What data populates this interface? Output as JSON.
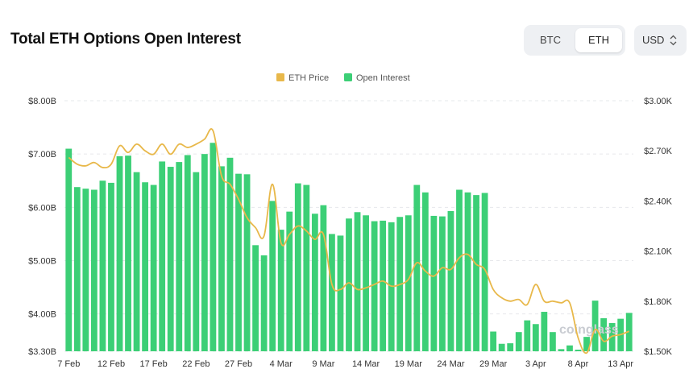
{
  "header": {
    "title": "Total ETH Options Open Interest",
    "asset_tabs": [
      {
        "label": "BTC",
        "selected": false
      },
      {
        "label": "ETH",
        "selected": true
      }
    ],
    "currency": {
      "label": "USD",
      "chevron": "⌃⌄"
    }
  },
  "watermark": "coinglass",
  "chart_data": {
    "type": "bar+line",
    "legend": [
      {
        "name": "ETH Price",
        "color": "#e8b84a"
      },
      {
        "name": "Open Interest",
        "color": "#3ccf76"
      }
    ],
    "x_tick_labels": [
      "7 Feb",
      "12 Feb",
      "17 Feb",
      "22 Feb",
      "27 Feb",
      "4 Mar",
      "9 Mar",
      "14 Mar",
      "19 Mar",
      "24 Mar",
      "29 Mar",
      "3 Apr",
      "8 Apr",
      "13 Apr"
    ],
    "x_tick_index": [
      0,
      5,
      10,
      15,
      20,
      25,
      30,
      35,
      40,
      45,
      50,
      55,
      60,
      65
    ],
    "left_axis": {
      "ticks": [
        "$8.00B",
        "$7.00B",
        "$6.00B",
        "$5.00B",
        "$4.00B",
        "$3.30B"
      ],
      "values": [
        8.0,
        7.0,
        6.0,
        5.0,
        4.0,
        3.3
      ],
      "ylim": [
        3.3,
        8.0
      ]
    },
    "right_axis": {
      "ticks": [
        "$3.00K",
        "$2.70K",
        "$2.40K",
        "$2.10K",
        "$1.80K",
        "$1.50K"
      ],
      "values": [
        3.0,
        2.7,
        2.4,
        2.1,
        1.8,
        1.5
      ],
      "ylim": [
        1.5,
        3.0
      ]
    },
    "dates": [
      "7 Feb",
      "8 Feb",
      "9 Feb",
      "10 Feb",
      "11 Feb",
      "12 Feb",
      "13 Feb",
      "14 Feb",
      "15 Feb",
      "16 Feb",
      "17 Feb",
      "18 Feb",
      "19 Feb",
      "20 Feb",
      "21 Feb",
      "22 Feb",
      "23 Feb",
      "24 Feb",
      "25 Feb",
      "26 Feb",
      "27 Feb",
      "28 Feb",
      "1 Mar",
      "2 Mar",
      "3 Mar",
      "4 Mar",
      "5 Mar",
      "6 Mar",
      "7 Mar",
      "8 Mar",
      "9 Mar",
      "10 Mar",
      "11 Mar",
      "12 Mar",
      "13 Mar",
      "14 Mar",
      "15 Mar",
      "16 Mar",
      "17 Mar",
      "18 Mar",
      "19 Mar",
      "20 Mar",
      "21 Mar",
      "22 Mar",
      "23 Mar",
      "24 Mar",
      "25 Mar",
      "26 Mar",
      "27 Mar",
      "28 Mar",
      "29 Mar",
      "30 Mar",
      "31 Mar",
      "1 Apr",
      "2 Apr",
      "3 Apr",
      "4 Apr",
      "5 Apr",
      "6 Apr",
      "7 Apr",
      "8 Apr",
      "9 Apr",
      "10 Apr",
      "11 Apr",
      "12 Apr",
      "13 Apr",
      "14 Apr"
    ],
    "series": [
      {
        "name": "Open Interest",
        "axis": "left",
        "type": "bar",
        "unit": "USD billions",
        "values": [
          7.1,
          6.38,
          6.35,
          6.33,
          6.5,
          6.46,
          6.96,
          6.97,
          6.66,
          6.47,
          6.42,
          6.86,
          6.76,
          6.85,
          6.98,
          6.66,
          7.0,
          7.21,
          6.77,
          6.93,
          6.63,
          6.62,
          5.29,
          5.1,
          6.12,
          5.58,
          5.92,
          6.45,
          6.42,
          5.88,
          6.04,
          5.5,
          5.47,
          5.79,
          5.91,
          5.85,
          5.74,
          5.75,
          5.72,
          5.82,
          5.85,
          6.42,
          6.28,
          5.84,
          5.83,
          5.93,
          6.33,
          6.28,
          6.23,
          6.27,
          3.67,
          3.44,
          3.45,
          3.66,
          3.88,
          3.81,
          4.04,
          3.66,
          3.34,
          3.41,
          3.33,
          3.57,
          4.25,
          3.92,
          3.83,
          3.91,
          4.02
        ]
      },
      {
        "name": "ETH Price",
        "axis": "right",
        "type": "line",
        "unit": "USD thousands",
        "values": [
          2.66,
          2.62,
          2.61,
          2.63,
          2.6,
          2.62,
          2.73,
          2.69,
          2.74,
          2.7,
          2.68,
          2.74,
          2.68,
          2.74,
          2.72,
          2.74,
          2.77,
          2.82,
          2.55,
          2.5,
          2.41,
          2.3,
          2.24,
          2.19,
          2.5,
          2.15,
          2.2,
          2.25,
          2.22,
          2.17,
          2.2,
          1.9,
          1.87,
          1.91,
          1.87,
          1.88,
          1.9,
          1.92,
          1.89,
          1.9,
          1.93,
          2.03,
          1.98,
          1.95,
          2.0,
          1.99,
          2.06,
          2.08,
          2.02,
          1.99,
          1.87,
          1.82,
          1.8,
          1.81,
          1.78,
          1.9,
          1.8,
          1.8,
          1.79,
          1.79,
          1.58,
          1.49,
          1.63,
          1.56,
          1.59,
          1.6,
          1.62
        ]
      }
    ],
    "grid": "horizontal dashed"
  }
}
